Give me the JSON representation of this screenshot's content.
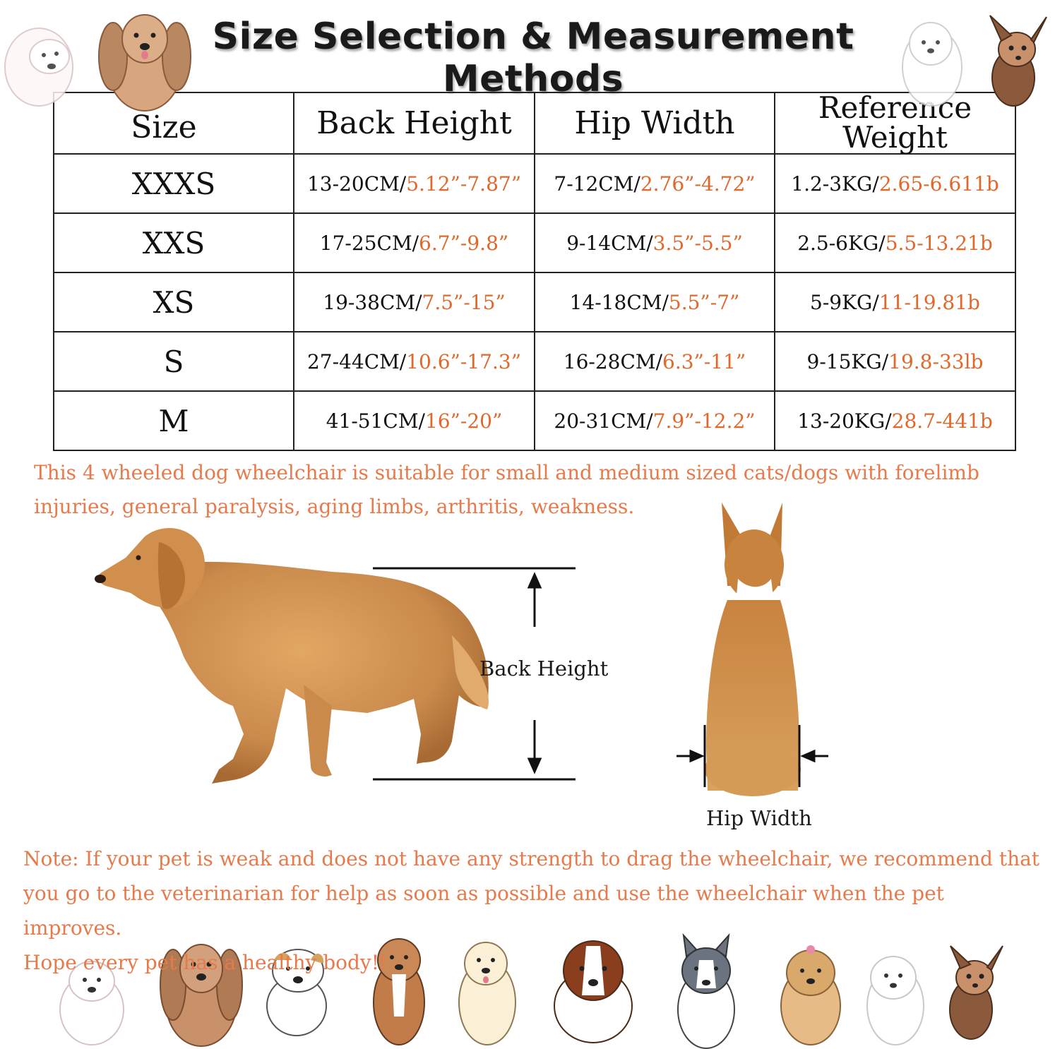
{
  "title": "Size Selection & Measurement Methods",
  "table": {
    "headers": [
      "Size",
      "Back Height",
      "Hip Width",
      "Reference\nWeight"
    ],
    "rows": [
      {
        "size": "XXXS",
        "back_cm": "13-20CM/",
        "back_in": "5.12”-7.87”",
        "hip_cm": "7-12CM/",
        "hip_in": "2.76”-4.72”",
        "weight_kg": "1.2-3KG/",
        "weight_lb": "2.65-6.611b"
      },
      {
        "size": "XXS",
        "back_cm": "17-25CM/",
        "back_in": "6.7”-9.8”",
        "hip_cm": "9-14CM/",
        "hip_in": "3.5”-5.5”",
        "weight_kg": "2.5-6KG/",
        "weight_lb": "5.5-13.21b"
      },
      {
        "size": "XS",
        "back_cm": "19-38CM/",
        "back_in": "7.5”-15”",
        "hip_cm": "14-18CM/",
        "hip_in": "5.5”-7”",
        "weight_kg": "5-9KG/",
        "weight_lb": "11-19.81b"
      },
      {
        "size": "S",
        "back_cm": "27-44CM/",
        "back_in": "10.6”-17.3”",
        "hip_cm": "16-28CM/",
        "hip_in": "6.3”-11”",
        "weight_kg": "9-15KG/",
        "weight_lb": "19.8-33lb"
      },
      {
        "size": "M",
        "back_cm": "41-51CM/",
        "back_in": "16”-20”",
        "hip_cm": "20-31CM/",
        "hip_in": "7.9”-12.2”",
        "weight_kg": "13-20KG/",
        "weight_lb": "28.7-441b"
      }
    ]
  },
  "description": "This 4 wheeled dog wheelchair is suitable for small and medium sized cats/dogs with forelimb injuries, general paralysis, aging limbs, arthritis, weakness.",
  "labels": {
    "back_height": "Back Height",
    "hip_width": "Hip Width"
  },
  "note": {
    "line1": "Note: If your pet is weak and does not have any strength to drag the wheelchair, we recommend that you go to the veterinarian for help as soon as possible and use the wheelchair when the pet improves.",
    "line2": "Hope every pet has a healthy body!!"
  },
  "colors": {
    "accent": "#e2672a",
    "note_text": "#e8794a",
    "dog_fur": "#c98a4b"
  },
  "illustrations": [
    "westie-cartoon",
    "spaniel-cartoon",
    "poodle-cartoon",
    "chihuahua-cartoon",
    "golden-retriever-photo",
    "corgi-back-photo",
    "bulldog-cartoon",
    "boxer-cartoon",
    "labrador-cartoon",
    "saint-bernard-cartoon",
    "husky-cartoon",
    "yorkie-cartoon"
  ]
}
